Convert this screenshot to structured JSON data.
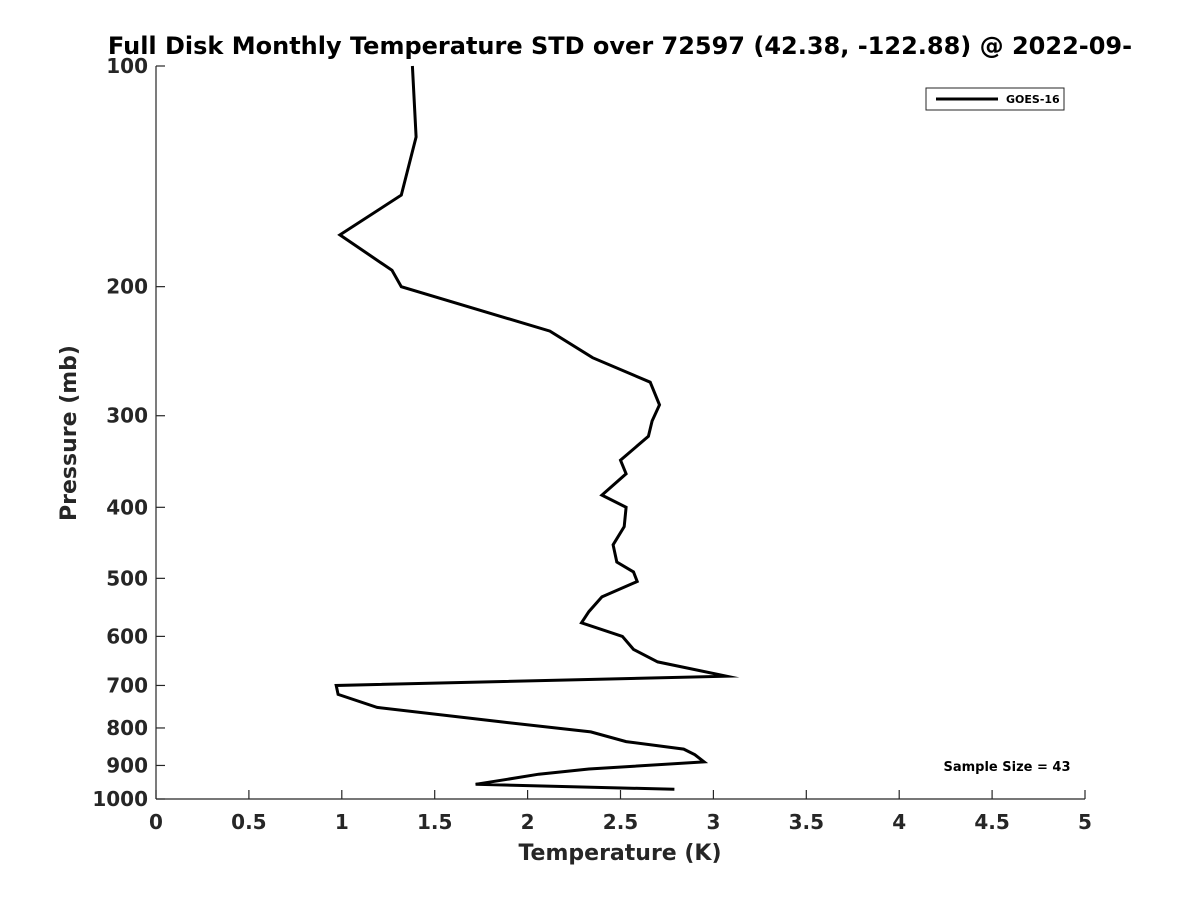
{
  "chart_data": {
    "type": "line",
    "title": "Full Disk Monthly Temperature STD over 72597 (42.38, -122.88) @ 2022-09-",
    "xlabel": "Temperature (K)",
    "ylabel": "Pressure (mb)",
    "xlim": [
      0,
      5
    ],
    "ylim": [
      100,
      1000
    ],
    "yscale": "log",
    "y_reversed": true,
    "grid": false,
    "legend_position": "top-right",
    "x_ticks": [
      "0",
      "0.5",
      "1",
      "1.5",
      "2",
      "2.5",
      "3",
      "3.5",
      "4",
      "4.5",
      "5"
    ],
    "y_ticks": [
      "100",
      "200",
      "300",
      "400",
      "500",
      "600",
      "700",
      "800",
      "900",
      "1000"
    ],
    "series": [
      {
        "name": "GOES-16",
        "color": "#000000",
        "points": [
          [
            1.38,
            100
          ],
          [
            1.4,
            125
          ],
          [
            1.32,
            150
          ],
          [
            0.99,
            170
          ],
          [
            1.27,
            190
          ],
          [
            1.32,
            200
          ],
          [
            2.12,
            230
          ],
          [
            2.35,
            250
          ],
          [
            2.66,
            270
          ],
          [
            2.71,
            290
          ],
          [
            2.67,
            305
          ],
          [
            2.65,
            320
          ],
          [
            2.5,
            345
          ],
          [
            2.53,
            360
          ],
          [
            2.4,
            385
          ],
          [
            2.53,
            400
          ],
          [
            2.52,
            425
          ],
          [
            2.46,
            450
          ],
          [
            2.48,
            475
          ],
          [
            2.57,
            490
          ],
          [
            2.59,
            505
          ],
          [
            2.4,
            530
          ],
          [
            2.33,
            555
          ],
          [
            2.29,
            575
          ],
          [
            2.51,
            600
          ],
          [
            2.57,
            625
          ],
          [
            2.7,
            650
          ],
          [
            3.07,
            680
          ],
          [
            0.97,
            700
          ],
          [
            0.98,
            720
          ],
          [
            1.19,
            750
          ],
          [
            1.86,
            785
          ],
          [
            2.34,
            810
          ],
          [
            2.53,
            835
          ],
          [
            2.84,
            855
          ],
          [
            2.9,
            870
          ],
          [
            2.95,
            890
          ],
          [
            2.33,
            910
          ],
          [
            2.06,
            925
          ],
          [
            1.89,
            940
          ],
          [
            1.72,
            955
          ],
          [
            2.79,
            970
          ]
        ]
      }
    ],
    "annotations": [
      "Sample Size = 43"
    ]
  }
}
